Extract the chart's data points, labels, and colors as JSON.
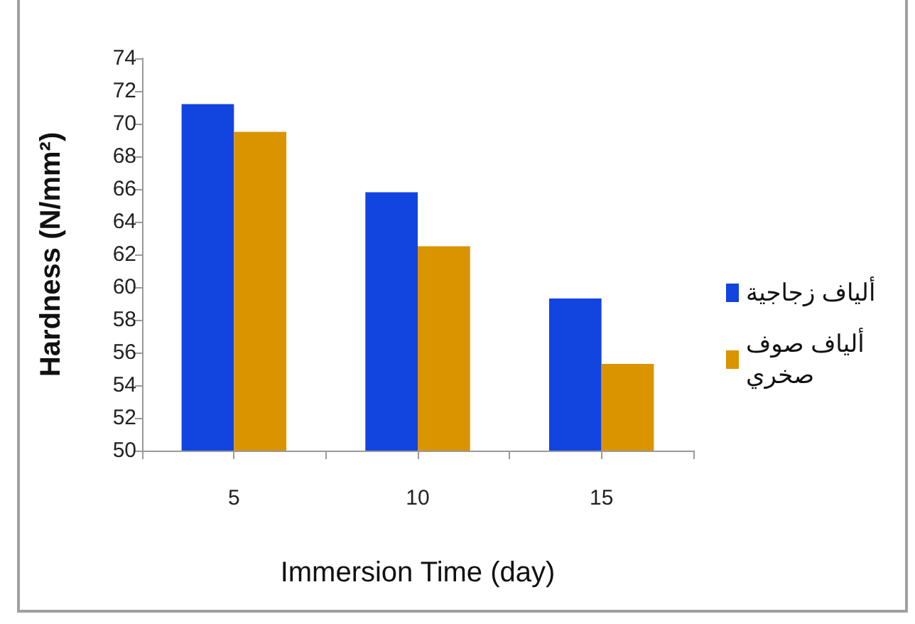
{
  "chart_data": {
    "type": "bar",
    "xlabel": "Immersion Time (day)",
    "ylabel": "Hardness (N/mm²)",
    "categories": [
      "5",
      "10",
      "15"
    ],
    "series": [
      {
        "name": "ألياف زجاجية",
        "color": "#1244e0",
        "values": [
          71.2,
          65.8,
          59.3
        ]
      },
      {
        "name": "ألياف صوف صخري",
        "color": "#d99400",
        "values": [
          69.5,
          62.5,
          55.3
        ]
      }
    ],
    "ylim": [
      50,
      74
    ],
    "yticks": [
      50,
      52,
      54,
      56,
      58,
      60,
      62,
      64,
      66,
      68,
      70,
      72,
      74
    ],
    "legend": "right"
  }
}
